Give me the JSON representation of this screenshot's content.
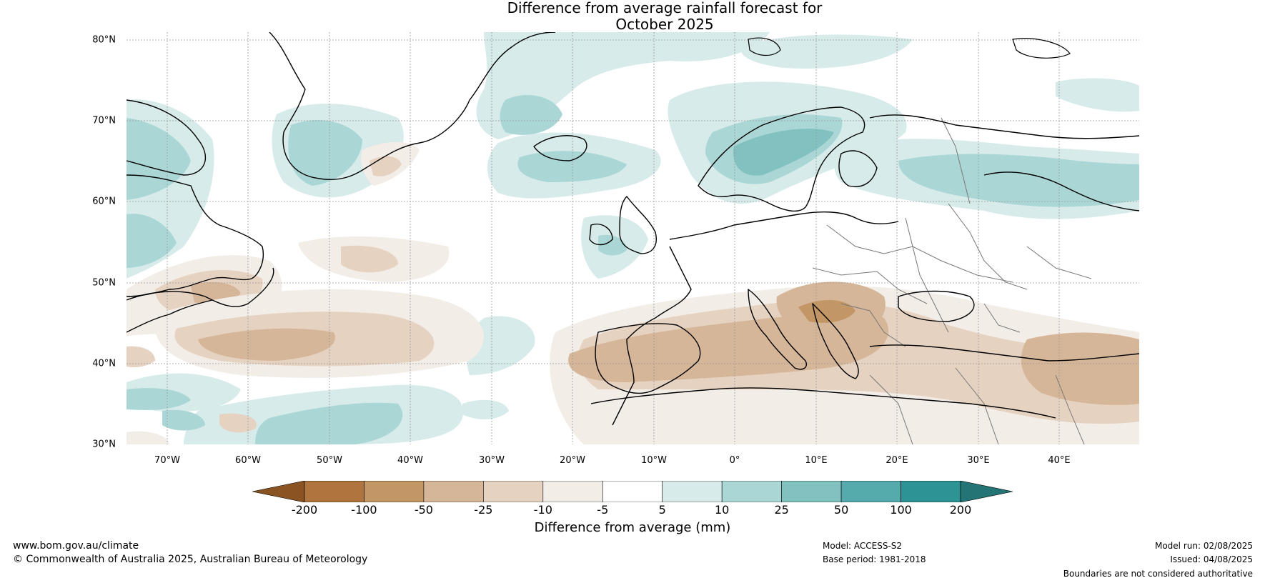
{
  "title": {
    "line1": "Difference from average rainfall forecast for",
    "line2": "October 2025"
  },
  "map": {
    "latitude_labels": [
      "80°N",
      "70°N",
      "60°N",
      "50°N",
      "40°N",
      "30°N"
    ],
    "longitude_labels": [
      "70°W",
      "60°W",
      "50°W",
      "40°W",
      "30°W",
      "20°W",
      "10°W",
      "0°",
      "10°E",
      "20°E",
      "30°E",
      "40°E"
    ]
  },
  "colorbar": {
    "ticks": [
      "-200",
      "-100",
      "-50",
      "-25",
      "-10",
      "-5",
      "5",
      "10",
      "25",
      "50",
      "100",
      "200"
    ],
    "colors": [
      "#8a5422",
      "#b0743e",
      "#c39666",
      "#d6b698",
      "#e6d2c1",
      "#f3ede7",
      "#ffffff",
      "#d6ebea",
      "#aad7d6",
      "#81c2c1",
      "#55aaab",
      "#2e9394",
      "#227574"
    ],
    "label": "Difference from average (mm)"
  },
  "footer": {
    "website": "www.bom.gov.au/climate",
    "copyright": "© Commonwealth of Australia 2025, Australian Bureau of Meteorology",
    "model": "Model: ACCESS-S2",
    "base_period": "Base period: 1981-2018",
    "model_run": "Model run: 02/08/2025",
    "issued": "Issued: 04/08/2025",
    "disclaimer": "Boundaries are not considered authoritative"
  }
}
